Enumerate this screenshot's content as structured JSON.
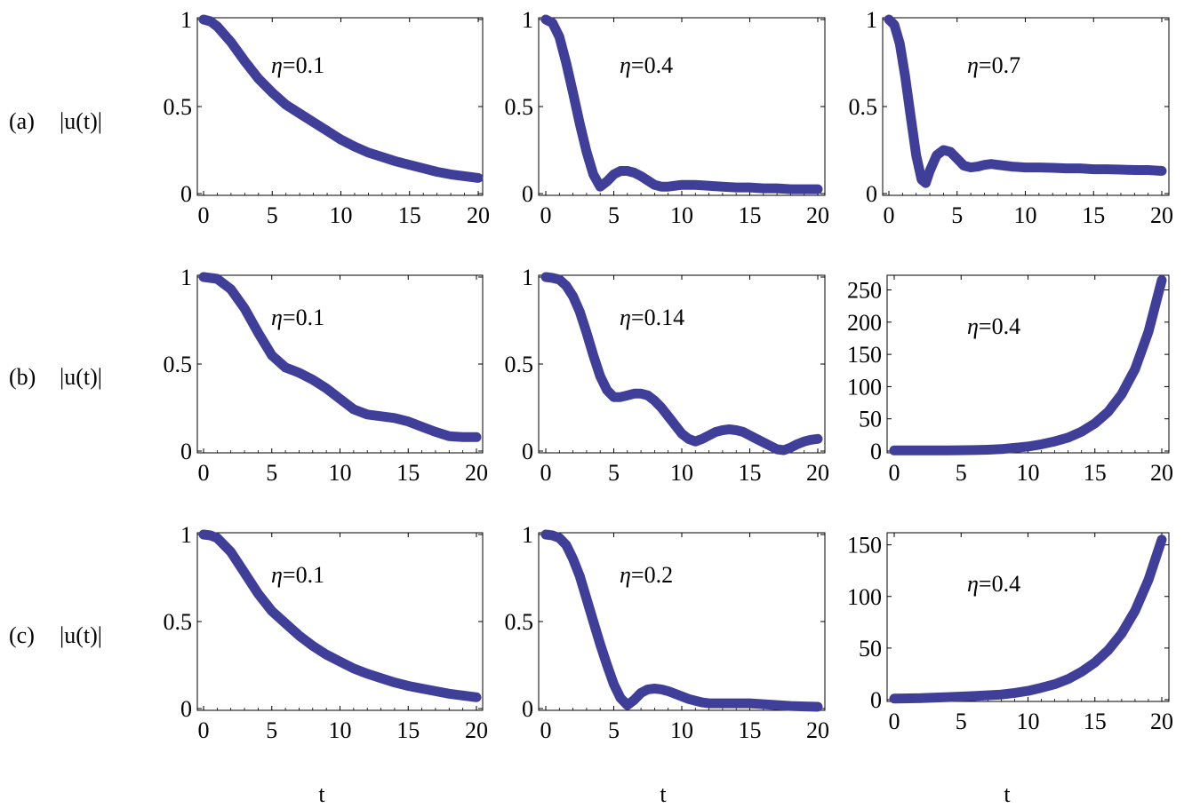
{
  "row_labels": [
    {
      "letter": "(a)",
      "ylabel": "|u(t)|"
    },
    {
      "letter": "(b)",
      "ylabel": "|u(t)|"
    },
    {
      "letter": "(c)",
      "ylabel": "|u(t)|"
    }
  ],
  "x_axis_label": "t",
  "colors": {
    "curve": "#3f3f9a",
    "axes": "#000000",
    "background": "#ffffff"
  },
  "chart_data": [
    {
      "type": "line",
      "panel": "a-1",
      "eta_symbol": "η",
      "eta_value": "=0.1",
      "xlim": [
        0,
        20
      ],
      "ylim": [
        0,
        1
      ],
      "xticks": [
        0,
        5,
        10,
        15,
        20
      ],
      "yticks": [
        0,
        0.5,
        1
      ],
      "ytick_labels": [
        "0",
        "0.5",
        "1"
      ],
      "grid": false,
      "x": [
        0,
        0.5,
        1,
        2,
        3,
        4,
        5,
        6,
        7,
        8,
        9,
        10,
        11,
        12,
        13,
        14,
        15,
        16,
        17,
        18,
        19,
        20
      ],
      "y": [
        1,
        0.99,
        0.96,
        0.87,
        0.76,
        0.66,
        0.58,
        0.51,
        0.46,
        0.41,
        0.36,
        0.31,
        0.27,
        0.235,
        0.21,
        0.185,
        0.165,
        0.145,
        0.125,
        0.11,
        0.1,
        0.09
      ]
    },
    {
      "type": "line",
      "panel": "a-2",
      "eta_symbol": "η",
      "eta_value": "=0.4",
      "xlim": [
        0,
        20
      ],
      "ylim": [
        0,
        1
      ],
      "xticks": [
        0,
        5,
        10,
        15,
        20
      ],
      "yticks": [
        0,
        0.5,
        1
      ],
      "ytick_labels": [
        "0",
        "0.5",
        "1"
      ],
      "grid": false,
      "x": [
        0,
        0.5,
        1,
        1.5,
        2,
        2.5,
        3,
        3.5,
        4,
        4.5,
        5,
        5.5,
        6,
        6.5,
        7,
        7.5,
        8,
        8.5,
        9,
        10,
        11,
        12,
        13,
        14,
        15,
        16,
        17,
        18,
        19,
        20
      ],
      "y": [
        1,
        0.98,
        0.9,
        0.75,
        0.58,
        0.4,
        0.24,
        0.11,
        0.04,
        0.07,
        0.11,
        0.13,
        0.13,
        0.12,
        0.1,
        0.075,
        0.05,
        0.04,
        0.04,
        0.05,
        0.05,
        0.045,
        0.04,
        0.035,
        0.035,
        0.03,
        0.03,
        0.025,
        0.025,
        0.025
      ]
    },
    {
      "type": "line",
      "panel": "a-3",
      "eta_symbol": "η",
      "eta_value": "=0.7",
      "xlim": [
        0,
        20
      ],
      "ylim": [
        0,
        1
      ],
      "xticks": [
        0,
        5,
        10,
        15,
        20
      ],
      "yticks": [
        0,
        0.5,
        1
      ],
      "ytick_labels": [
        "0",
        "0.5",
        "1"
      ],
      "grid": false,
      "x": [
        0,
        0.4,
        0.8,
        1.2,
        1.6,
        2,
        2.4,
        2.7,
        3,
        3.5,
        4,
        4.5,
        5,
        5.5,
        6,
        6.5,
        7,
        7.5,
        8,
        8.5,
        9,
        10,
        11,
        12,
        13,
        14,
        15,
        16,
        17,
        18,
        19,
        20
      ],
      "y": [
        1,
        0.97,
        0.86,
        0.67,
        0.44,
        0.22,
        0.08,
        0.06,
        0.13,
        0.22,
        0.25,
        0.24,
        0.2,
        0.16,
        0.15,
        0.155,
        0.165,
        0.17,
        0.165,
        0.16,
        0.155,
        0.15,
        0.15,
        0.148,
        0.145,
        0.145,
        0.14,
        0.14,
        0.138,
        0.135,
        0.135,
        0.13
      ]
    },
    {
      "type": "line",
      "panel": "b-1",
      "eta_symbol": "η",
      "eta_value": "=0.1",
      "xlim": [
        0,
        20
      ],
      "ylim": [
        0,
        1
      ],
      "xticks": [
        0,
        5,
        10,
        15,
        20
      ],
      "yticks": [
        0,
        0.5,
        1
      ],
      "ytick_labels": [
        "0",
        "0.5",
        "1"
      ],
      "grid": false,
      "x": [
        0,
        1,
        2,
        3,
        4,
        5,
        6,
        7,
        8,
        9,
        10,
        11,
        12,
        13,
        14,
        15,
        16,
        17,
        18,
        19,
        20
      ],
      "y": [
        1,
        0.99,
        0.93,
        0.82,
        0.68,
        0.55,
        0.48,
        0.45,
        0.41,
        0.36,
        0.3,
        0.24,
        0.21,
        0.2,
        0.19,
        0.17,
        0.14,
        0.11,
        0.085,
        0.08,
        0.08
      ]
    },
    {
      "type": "line",
      "panel": "b-2",
      "eta_symbol": "η",
      "eta_value": "=0.14",
      "xlim": [
        0,
        20
      ],
      "ylim": [
        0,
        1
      ],
      "xticks": [
        0,
        5,
        10,
        15,
        20
      ],
      "yticks": [
        0,
        0.5,
        1
      ],
      "ytick_labels": [
        "0",
        "0.5",
        "1"
      ],
      "grid": false,
      "x": [
        0,
        0.5,
        1,
        1.5,
        2,
        2.5,
        3,
        3.5,
        4,
        4.5,
        5,
        5.5,
        6,
        6.5,
        7,
        7.5,
        8,
        8.5,
        9,
        9.5,
        10,
        10.5,
        11,
        11.5,
        12,
        12.5,
        13,
        13.5,
        14,
        14.5,
        15,
        15.5,
        16,
        16.5,
        17,
        17.5,
        18,
        18.5,
        19,
        19.5,
        20
      ],
      "y": [
        1,
        0.995,
        0.985,
        0.95,
        0.89,
        0.8,
        0.68,
        0.55,
        0.43,
        0.35,
        0.31,
        0.31,
        0.32,
        0.33,
        0.33,
        0.32,
        0.29,
        0.25,
        0.2,
        0.15,
        0.1,
        0.07,
        0.055,
        0.07,
        0.09,
        0.11,
        0.12,
        0.125,
        0.12,
        0.11,
        0.09,
        0.07,
        0.05,
        0.03,
        0.01,
        0.005,
        0.02,
        0.04,
        0.055,
        0.065,
        0.07
      ]
    },
    {
      "type": "line",
      "panel": "b-3",
      "eta_symbol": "η",
      "eta_value": "=0.4",
      "xlim": [
        0,
        20
      ],
      "ylim": [
        0,
        270
      ],
      "xticks": [
        0,
        5,
        10,
        15,
        20
      ],
      "yticks": [
        0,
        50,
        100,
        150,
        200,
        250
      ],
      "ytick_labels": [
        "0",
        "50",
        "100",
        "150",
        "200",
        "250"
      ],
      "grid": false,
      "x": [
        0,
        2,
        4,
        6,
        7,
        8,
        9,
        10,
        11,
        12,
        13,
        14,
        15,
        16,
        17,
        18,
        19,
        20
      ],
      "y": [
        1,
        1,
        1,
        1.5,
        2,
        3,
        5,
        7,
        10.5,
        15,
        21,
        30,
        43,
        61,
        88,
        127,
        185,
        265
      ]
    },
    {
      "type": "line",
      "panel": "c-1",
      "eta_symbol": "η",
      "eta_value": "=0.1",
      "xlim": [
        0,
        20
      ],
      "ylim": [
        0,
        1
      ],
      "xticks": [
        0,
        5,
        10,
        15,
        20
      ],
      "yticks": [
        0,
        0.5,
        1
      ],
      "ytick_labels": [
        "0",
        "0.5",
        "1"
      ],
      "grid": false,
      "x": [
        0,
        0.5,
        1,
        2,
        3,
        4,
        5,
        6,
        7,
        8,
        9,
        10,
        11,
        12,
        13,
        14,
        15,
        16,
        17,
        18,
        19,
        20
      ],
      "y": [
        1,
        0.995,
        0.98,
        0.9,
        0.78,
        0.66,
        0.56,
        0.49,
        0.42,
        0.36,
        0.31,
        0.27,
        0.23,
        0.2,
        0.175,
        0.15,
        0.13,
        0.115,
        0.1,
        0.085,
        0.075,
        0.065
      ]
    },
    {
      "type": "line",
      "panel": "c-2",
      "eta_symbol": "η",
      "eta_value": "=0.2",
      "xlim": [
        0,
        20
      ],
      "ylim": [
        0,
        1
      ],
      "xticks": [
        0,
        5,
        10,
        15,
        20
      ],
      "yticks": [
        0,
        0.5,
        1
      ],
      "ytick_labels": [
        "0",
        "0.5",
        "1"
      ],
      "grid": false,
      "x": [
        0,
        0.5,
        1,
        1.5,
        2,
        2.5,
        3,
        3.5,
        4,
        4.5,
        5,
        5.5,
        6,
        6.5,
        7,
        7.5,
        8,
        8.5,
        9,
        9.5,
        10,
        10.5,
        11,
        11.5,
        12,
        12.5,
        13,
        14,
        15,
        16,
        17,
        18,
        19,
        20
      ],
      "y": [
        1,
        0.995,
        0.98,
        0.94,
        0.86,
        0.76,
        0.63,
        0.5,
        0.37,
        0.25,
        0.14,
        0.06,
        0.02,
        0.05,
        0.09,
        0.11,
        0.115,
        0.11,
        0.1,
        0.085,
        0.07,
        0.055,
        0.045,
        0.035,
        0.03,
        0.03,
        0.03,
        0.03,
        0.03,
        0.025,
        0.02,
        0.015,
        0.012,
        0.01
      ]
    },
    {
      "type": "line",
      "panel": "c-3",
      "eta_symbol": "η",
      "eta_value": "=0.4",
      "xlim": [
        0,
        20
      ],
      "ylim": [
        0,
        160
      ],
      "xticks": [
        0,
        5,
        10,
        15,
        20
      ],
      "yticks": [
        0,
        50,
        100,
        150
      ],
      "ytick_labels": [
        "0",
        "50",
        "100",
        "150"
      ],
      "grid": false,
      "x": [
        0,
        2,
        4,
        6,
        8,
        9,
        10,
        11,
        12,
        13,
        14,
        15,
        16,
        17,
        18,
        19,
        20
      ],
      "y": [
        1,
        1.5,
        2.5,
        3.5,
        5,
        6.5,
        8.5,
        11.5,
        15,
        20,
        27,
        36,
        48,
        64,
        86,
        116,
        155
      ]
    }
  ]
}
